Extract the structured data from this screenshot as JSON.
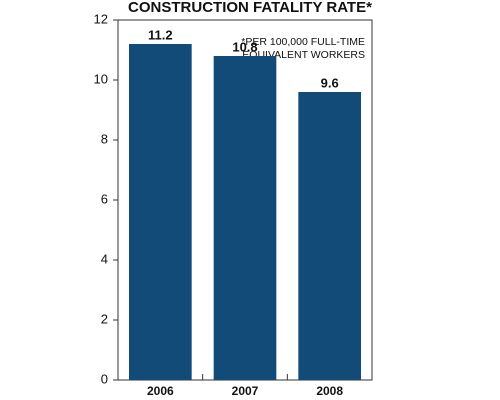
{
  "chart_data": {
    "type": "bar",
    "title": "CONSTRUCTION FATALITY RATE*",
    "annotation": [
      "*PER 100,000 FULL-TIME",
      "EQUIVALENT WORKERS"
    ],
    "categories": [
      "2006",
      "2007",
      "2008"
    ],
    "values": [
      11.2,
      10.8,
      9.6
    ],
    "color": "#124a78",
    "ylim": [
      0,
      12
    ],
    "yticks": [
      0,
      2,
      4,
      6,
      8,
      10,
      12
    ],
    "grid": false
  }
}
